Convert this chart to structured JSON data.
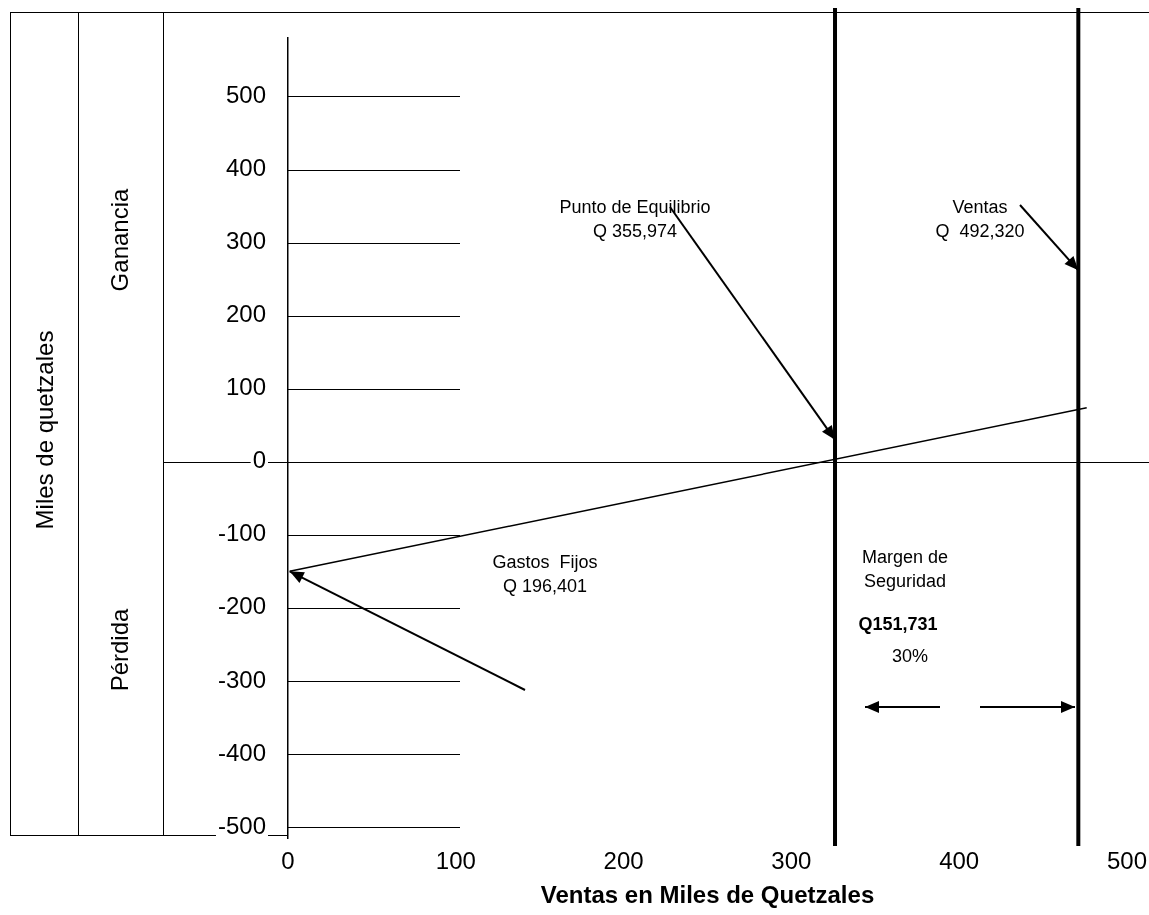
{
  "chart_data": {
    "type": "line",
    "xlabel": "Ventas en Miles de Quetzales",
    "xlim": [
      0,
      500
    ],
    "ylim": [
      -515,
      580
    ],
    "xticks": [
      0,
      100,
      200,
      300,
      400,
      500
    ],
    "yticks": [
      -500,
      -400,
      -300,
      -200,
      -100,
      0,
      100,
      200,
      300,
      400,
      500
    ],
    "legend": false,
    "marker": "none",
    "line_style": "solid",
    "series": [
      {
        "color": "#000000",
        "x": [
          1,
          476
        ],
        "values": [
          -150,
          74
        ]
      }
    ],
    "ref_lines": [
      {
        "axis": "y",
        "value": 0,
        "color": "#000000"
      },
      {
        "axis": "x",
        "value": 326,
        "color": "#000000"
      },
      {
        "axis": "x",
        "value": 471,
        "color": "#000000"
      }
    ],
    "annotations": [
      "Miles de quetzales",
      "Ganancia",
      "Pérdida",
      {
        "text": "Punto de Equilibrio\nQ 355,974",
        "x": 326,
        "y": 30
      },
      {
        "text": "Ventas\nQ  492,320",
        "x": 471,
        "y": 262
      },
      "Gastos  Fijos\nQ 196,401",
      "Margen de\nSeguridad",
      "Q151,731",
      "30%"
    ]
  }
}
